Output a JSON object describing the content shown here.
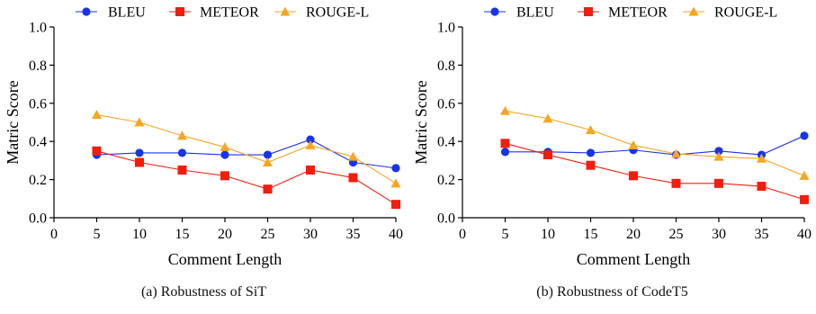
{
  "chart_data": [
    {
      "type": "line",
      "caption": "(a)  Robustness of SiT",
      "xlabel": "Comment Length",
      "ylabel": "Matric Score",
      "x": [
        5,
        10,
        15,
        20,
        25,
        30,
        35,
        40
      ],
      "xlim": [
        0,
        40
      ],
      "xticks": [
        0,
        5,
        10,
        15,
        20,
        25,
        30,
        35,
        40
      ],
      "ylim": [
        0,
        1.0
      ],
      "yticks": [
        0.0,
        0.2,
        0.4,
        0.6,
        0.8,
        1.0
      ],
      "ytick_labels": [
        "0.0",
        "0.2",
        "0.4",
        "0.6",
        "0.8",
        "1.0"
      ],
      "legend_position": "top",
      "grid": false,
      "series": [
        {
          "name": "BLEU",
          "color": "#1a33e6",
          "marker": "circle",
          "values": [
            0.33,
            0.34,
            0.34,
            0.33,
            0.33,
            0.41,
            0.29,
            0.26
          ]
        },
        {
          "name": "METEOR",
          "color": "#f01e0e",
          "marker": "square",
          "values": [
            0.35,
            0.29,
            0.25,
            0.22,
            0.15,
            0.25,
            0.21,
            0.07
          ]
        },
        {
          "name": "ROUGE-L",
          "color": "#f5a623",
          "marker": "triangle",
          "values": [
            0.54,
            0.5,
            0.43,
            0.37,
            0.29,
            0.38,
            0.32,
            0.18
          ]
        }
      ]
    },
    {
      "type": "line",
      "caption": "(b)  Robustness of CodeT5",
      "xlabel": "Comment Length",
      "ylabel": "Matric Score",
      "x": [
        5,
        10,
        15,
        20,
        25,
        30,
        35,
        40
      ],
      "xlim": [
        0,
        40
      ],
      "xticks": [
        0,
        5,
        10,
        15,
        20,
        25,
        30,
        35,
        40
      ],
      "ylim": [
        0,
        1.0
      ],
      "yticks": [
        0.0,
        0.2,
        0.4,
        0.6,
        0.8,
        1.0
      ],
      "ytick_labels": [
        "0.0",
        "0.2",
        "0.4",
        "0.6",
        "0.8",
        "1.0"
      ],
      "legend_position": "top",
      "grid": false,
      "series": [
        {
          "name": "BLEU",
          "color": "#1a33e6",
          "marker": "circle",
          "values": [
            0.345,
            0.345,
            0.34,
            0.355,
            0.33,
            0.35,
            0.33,
            0.43
          ]
        },
        {
          "name": "METEOR",
          "color": "#f01e0e",
          "marker": "square",
          "values": [
            0.39,
            0.33,
            0.275,
            0.22,
            0.18,
            0.18,
            0.165,
            0.095
          ]
        },
        {
          "name": "ROUGE-L",
          "color": "#f5a623",
          "marker": "triangle",
          "values": [
            0.56,
            0.52,
            0.46,
            0.38,
            0.335,
            0.32,
            0.31,
            0.22
          ]
        }
      ]
    }
  ]
}
